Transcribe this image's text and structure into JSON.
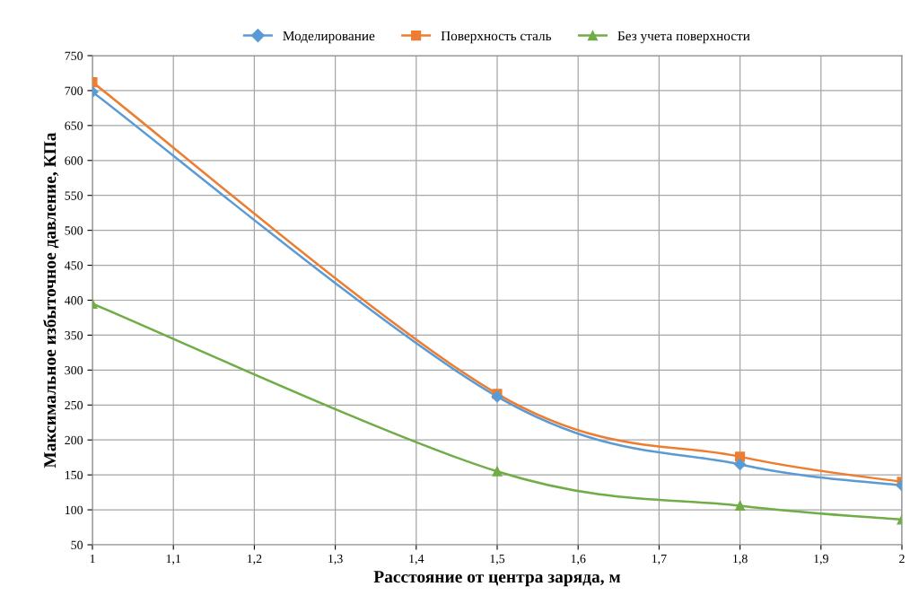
{
  "chart_data": {
    "type": "line",
    "xlabel": "Расстояние от центра заряда, м",
    "ylabel": "Максимальное избыточное давление, КПа",
    "x": [
      1,
      1.5,
      1.8,
      2
    ],
    "series": [
      {
        "name": "Моделирование",
        "color": "#5b9bd5",
        "marker": "diamond",
        "values": [
          698,
          262,
          165,
          135
        ]
      },
      {
        "name": "Поверхность сталь",
        "color": "#ed7d31",
        "marker": "square",
        "values": [
          712,
          266,
          176,
          140
        ]
      },
      {
        "name": "Без учета поверхности",
        "color": "#70ad47",
        "marker": "triangle",
        "values": [
          395,
          155,
          106,
          86
        ]
      }
    ],
    "xlim": [
      1,
      2
    ],
    "xticks": [
      1,
      {
        "value": 1.1,
        "label": "1,1"
      },
      {
        "value": 1.2,
        "label": "1,2"
      },
      {
        "value": 1.3,
        "label": "1,3"
      },
      {
        "value": 1.4,
        "label": "1,4"
      },
      {
        "value": 1.5,
        "label": "1,5"
      },
      {
        "value": 1.6,
        "label": "1,6"
      },
      {
        "value": 1.7,
        "label": "1,7"
      },
      {
        "value": 1.8,
        "label": "1,8"
      },
      {
        "value": 1.9,
        "label": "1,9"
      },
      2
    ],
    "ylim": [
      50,
      750
    ],
    "yticks": [
      50,
      100,
      150,
      200,
      250,
      300,
      350,
      400,
      450,
      500,
      550,
      600,
      650,
      700,
      750
    ],
    "grid": true,
    "legend": "top",
    "line_style": "solid"
  }
}
